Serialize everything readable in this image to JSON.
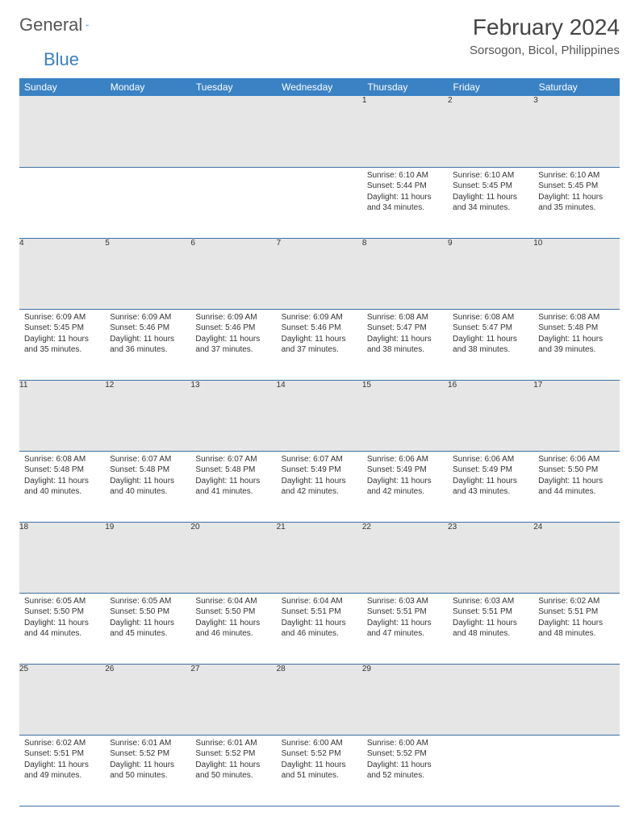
{
  "brand": {
    "part1": "General",
    "part2": "Blue"
  },
  "title": "February 2024",
  "location": "Sorsogon, Bicol, Philippines",
  "colors": {
    "header_bg": "#3b82c4",
    "header_text": "#ffffff",
    "daynum_bg": "#e6e6e6",
    "border": "#3b6fa5",
    "logo_gray": "#555555",
    "logo_blue": "#3b7fc4"
  },
  "weekdays": [
    "Sunday",
    "Monday",
    "Tuesday",
    "Wednesday",
    "Thursday",
    "Friday",
    "Saturday"
  ],
  "weeks": [
    [
      null,
      null,
      null,
      null,
      {
        "n": "1",
        "sr": "6:10 AM",
        "ss": "5:44 PM",
        "dl": "11 hours and 34 minutes."
      },
      {
        "n": "2",
        "sr": "6:10 AM",
        "ss": "5:45 PM",
        "dl": "11 hours and 34 minutes."
      },
      {
        "n": "3",
        "sr": "6:10 AM",
        "ss": "5:45 PM",
        "dl": "11 hours and 35 minutes."
      }
    ],
    [
      {
        "n": "4",
        "sr": "6:09 AM",
        "ss": "5:45 PM",
        "dl": "11 hours and 35 minutes."
      },
      {
        "n": "5",
        "sr": "6:09 AM",
        "ss": "5:46 PM",
        "dl": "11 hours and 36 minutes."
      },
      {
        "n": "6",
        "sr": "6:09 AM",
        "ss": "5:46 PM",
        "dl": "11 hours and 37 minutes."
      },
      {
        "n": "7",
        "sr": "6:09 AM",
        "ss": "5:46 PM",
        "dl": "11 hours and 37 minutes."
      },
      {
        "n": "8",
        "sr": "6:08 AM",
        "ss": "5:47 PM",
        "dl": "11 hours and 38 minutes."
      },
      {
        "n": "9",
        "sr": "6:08 AM",
        "ss": "5:47 PM",
        "dl": "11 hours and 38 minutes."
      },
      {
        "n": "10",
        "sr": "6:08 AM",
        "ss": "5:48 PM",
        "dl": "11 hours and 39 minutes."
      }
    ],
    [
      {
        "n": "11",
        "sr": "6:08 AM",
        "ss": "5:48 PM",
        "dl": "11 hours and 40 minutes."
      },
      {
        "n": "12",
        "sr": "6:07 AM",
        "ss": "5:48 PM",
        "dl": "11 hours and 40 minutes."
      },
      {
        "n": "13",
        "sr": "6:07 AM",
        "ss": "5:48 PM",
        "dl": "11 hours and 41 minutes."
      },
      {
        "n": "14",
        "sr": "6:07 AM",
        "ss": "5:49 PM",
        "dl": "11 hours and 42 minutes."
      },
      {
        "n": "15",
        "sr": "6:06 AM",
        "ss": "5:49 PM",
        "dl": "11 hours and 42 minutes."
      },
      {
        "n": "16",
        "sr": "6:06 AM",
        "ss": "5:49 PM",
        "dl": "11 hours and 43 minutes."
      },
      {
        "n": "17",
        "sr": "6:06 AM",
        "ss": "5:50 PM",
        "dl": "11 hours and 44 minutes."
      }
    ],
    [
      {
        "n": "18",
        "sr": "6:05 AM",
        "ss": "5:50 PM",
        "dl": "11 hours and 44 minutes."
      },
      {
        "n": "19",
        "sr": "6:05 AM",
        "ss": "5:50 PM",
        "dl": "11 hours and 45 minutes."
      },
      {
        "n": "20",
        "sr": "6:04 AM",
        "ss": "5:50 PM",
        "dl": "11 hours and 46 minutes."
      },
      {
        "n": "21",
        "sr": "6:04 AM",
        "ss": "5:51 PM",
        "dl": "11 hours and 46 minutes."
      },
      {
        "n": "22",
        "sr": "6:03 AM",
        "ss": "5:51 PM",
        "dl": "11 hours and 47 minutes."
      },
      {
        "n": "23",
        "sr": "6:03 AM",
        "ss": "5:51 PM",
        "dl": "11 hours and 48 minutes."
      },
      {
        "n": "24",
        "sr": "6:02 AM",
        "ss": "5:51 PM",
        "dl": "11 hours and 48 minutes."
      }
    ],
    [
      {
        "n": "25",
        "sr": "6:02 AM",
        "ss": "5:51 PM",
        "dl": "11 hours and 49 minutes."
      },
      {
        "n": "26",
        "sr": "6:01 AM",
        "ss": "5:52 PM",
        "dl": "11 hours and 50 minutes."
      },
      {
        "n": "27",
        "sr": "6:01 AM",
        "ss": "5:52 PM",
        "dl": "11 hours and 50 minutes."
      },
      {
        "n": "28",
        "sr": "6:00 AM",
        "ss": "5:52 PM",
        "dl": "11 hours and 51 minutes."
      },
      {
        "n": "29",
        "sr": "6:00 AM",
        "ss": "5:52 PM",
        "dl": "11 hours and 52 minutes."
      },
      null,
      null
    ]
  ],
  "labels": {
    "sunrise": "Sunrise:",
    "sunset": "Sunset:",
    "daylight": "Daylight:"
  }
}
